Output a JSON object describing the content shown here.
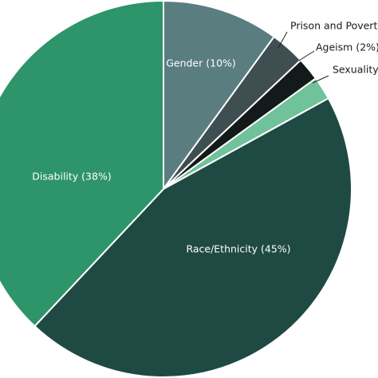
{
  "chart_data": {
    "type": "pie",
    "start_angle_deg": 0,
    "direction": "clockwise",
    "slices": [
      {
        "label": "Gender (10%)",
        "value": 10,
        "color": "#5a7d80",
        "label_color": "#ffffff",
        "label_placement": "inside"
      },
      {
        "label": "Prison and Poverty",
        "value": 3,
        "color": "#3f4f51",
        "label_color": "#1a1a1a",
        "label_placement": "outside"
      },
      {
        "label": "Ageism (2%)",
        "value": 2,
        "color": "#141a19",
        "label_color": "#1a1a1a",
        "label_placement": "outside"
      },
      {
        "label": "Sexuality",
        "value": 2,
        "color": "#6fc29a",
        "label_color": "#1a1a1a",
        "label_placement": "outside"
      },
      {
        "label": "Race/Ethnicity (45%)",
        "value": 45,
        "color": "#1f4a43",
        "label_color": "#ffffff",
        "label_placement": "inside"
      },
      {
        "label": "Disability (38%)",
        "value": 38,
        "color": "#2e9469",
        "label_color": "#ffffff",
        "label_placement": "inside"
      }
    ]
  }
}
